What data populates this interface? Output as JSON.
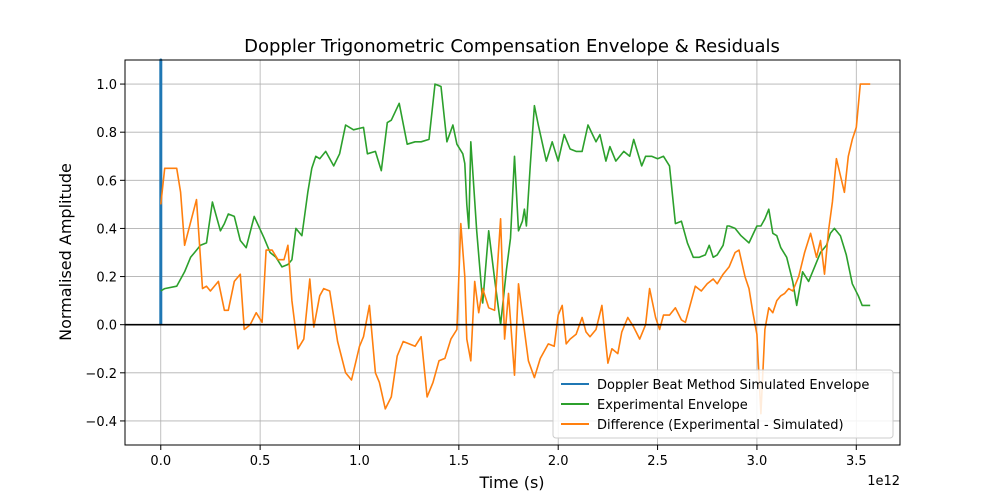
{
  "chart_data": {
    "type": "line",
    "title": "Doppler Trigonometric Compensation Envelope & Residuals",
    "xlabel": "Time (s)",
    "ylabel": "Normalised Amplitude",
    "x_offset_label": "1e12",
    "xlim": [
      -0.18,
      3.72
    ],
    "ylim": [
      -0.5,
      1.1
    ],
    "xticks": [
      0.0,
      0.5,
      1.0,
      1.5,
      2.0,
      2.5,
      3.0,
      3.5
    ],
    "xtick_labels": [
      "0.0",
      "0.5",
      "1.0",
      "1.5",
      "2.0",
      "2.5",
      "3.0",
      "3.5"
    ],
    "yticks": [
      -0.4,
      -0.2,
      0.0,
      0.2,
      0.4,
      0.6,
      0.8,
      1.0
    ],
    "ytick_labels": [
      "−0.4",
      "−0.2",
      "0.0",
      "0.2",
      "0.4",
      "0.6",
      "0.8",
      "1.0"
    ],
    "grid": true,
    "zero_line": true,
    "legend_position": "lower-right",
    "series": [
      {
        "name": "Doppler Beat Method Simulated Envelope",
        "color": "#1f77b4",
        "x": [
          0.0,
          0.0,
          0.0
        ],
        "y": [
          0.0,
          1.1,
          0.0
        ]
      },
      {
        "name": "Experimental Envelope",
        "color": "#2ca02c",
        "x": [
          0.0,
          0.02,
          0.08,
          0.12,
          0.15,
          0.17,
          0.2,
          0.23,
          0.26,
          0.3,
          0.32,
          0.34,
          0.37,
          0.4,
          0.43,
          0.47,
          0.52,
          0.55,
          0.58,
          0.61,
          0.64,
          0.66,
          0.68,
          0.71,
          0.74,
          0.76,
          0.78,
          0.8,
          0.83,
          0.87,
          0.9,
          0.93,
          0.97,
          1.02,
          1.04,
          1.08,
          1.11,
          1.14,
          1.16,
          1.2,
          1.24,
          1.28,
          1.31,
          1.35,
          1.38,
          1.41,
          1.44,
          1.47,
          1.49,
          1.52,
          1.53,
          1.54,
          1.55,
          1.56,
          1.59,
          1.62,
          1.65,
          1.68,
          1.71,
          1.74,
          1.76,
          1.78,
          1.8,
          1.82,
          1.83,
          1.84,
          1.86,
          1.88,
          1.9,
          1.94,
          1.97,
          2.0,
          2.03,
          2.06,
          2.09,
          2.12,
          2.15,
          2.19,
          2.21,
          2.24,
          2.26,
          2.29,
          2.33,
          2.36,
          2.38,
          2.42,
          2.44,
          2.47,
          2.5,
          2.53,
          2.56,
          2.59,
          2.62,
          2.65,
          2.68,
          2.71,
          2.74,
          2.76,
          2.78,
          2.8,
          2.83,
          2.85,
          2.86,
          2.89,
          2.92,
          2.96,
          3.0,
          3.02,
          3.04,
          3.06,
          3.08,
          3.1,
          3.12,
          3.15,
          3.18,
          3.2,
          3.23,
          3.26,
          3.29,
          3.32,
          3.35,
          3.37,
          3.39,
          3.42,
          3.45,
          3.48,
          3.51,
          3.53,
          3.55,
          3.57
        ],
        "y": [
          0.14,
          0.15,
          0.16,
          0.22,
          0.28,
          0.3,
          0.33,
          0.34,
          0.51,
          0.39,
          0.42,
          0.46,
          0.45,
          0.35,
          0.32,
          0.45,
          0.36,
          0.3,
          0.28,
          0.24,
          0.25,
          0.27,
          0.4,
          0.37,
          0.55,
          0.65,
          0.7,
          0.69,
          0.72,
          0.66,
          0.71,
          0.83,
          0.81,
          0.82,
          0.71,
          0.72,
          0.64,
          0.84,
          0.85,
          0.92,
          0.75,
          0.76,
          0.76,
          0.77,
          1.0,
          0.99,
          0.76,
          0.83,
          0.75,
          0.71,
          0.67,
          0.5,
          0.4,
          0.76,
          0.39,
          0.09,
          0.39,
          0.19,
          0.0,
          0.23,
          0.36,
          0.7,
          0.39,
          0.43,
          0.48,
          0.41,
          0.67,
          0.91,
          0.83,
          0.68,
          0.76,
          0.68,
          0.79,
          0.73,
          0.72,
          0.72,
          0.83,
          0.76,
          0.79,
          0.68,
          0.74,
          0.68,
          0.72,
          0.7,
          0.77,
          0.66,
          0.7,
          0.7,
          0.69,
          0.7,
          0.66,
          0.42,
          0.43,
          0.34,
          0.28,
          0.28,
          0.29,
          0.33,
          0.28,
          0.29,
          0.33,
          0.41,
          0.41,
          0.4,
          0.37,
          0.34,
          0.41,
          0.41,
          0.44,
          0.48,
          0.38,
          0.37,
          0.32,
          0.28,
          0.18,
          0.08,
          0.22,
          0.18,
          0.24,
          0.3,
          0.33,
          0.38,
          0.4,
          0.37,
          0.29,
          0.17,
          0.12,
          0.08,
          0.08,
          0.08
        ],
        "y_note": "approximate readings"
      },
      {
        "name": "Difference (Experimental - Simulated)",
        "color": "#ff7f0e",
        "x": [
          0.0,
          0.02,
          0.08,
          0.1,
          0.12,
          0.18,
          0.21,
          0.23,
          0.25,
          0.29,
          0.32,
          0.34,
          0.37,
          0.4,
          0.42,
          0.45,
          0.48,
          0.51,
          0.53,
          0.56,
          0.59,
          0.62,
          0.64,
          0.66,
          0.69,
          0.72,
          0.75,
          0.77,
          0.8,
          0.82,
          0.85,
          0.89,
          0.93,
          0.96,
          1.0,
          1.02,
          1.05,
          1.08,
          1.1,
          1.13,
          1.16,
          1.19,
          1.22,
          1.25,
          1.28,
          1.31,
          1.34,
          1.37,
          1.4,
          1.43,
          1.46,
          1.49,
          1.51,
          1.53,
          1.54,
          1.56,
          1.58,
          1.6,
          1.62,
          1.65,
          1.68,
          1.71,
          1.73,
          1.75,
          1.78,
          1.8,
          1.82,
          1.85,
          1.88,
          1.91,
          1.95,
          1.98,
          2.0,
          2.02,
          2.04,
          2.06,
          2.09,
          2.12,
          2.14,
          2.16,
          2.19,
          2.22,
          2.25,
          2.27,
          2.3,
          2.32,
          2.35,
          2.38,
          2.41,
          2.44,
          2.46,
          2.49,
          2.51,
          2.53,
          2.56,
          2.59,
          2.62,
          2.64,
          2.66,
          2.69,
          2.72,
          2.75,
          2.78,
          2.8,
          2.83,
          2.86,
          2.89,
          2.91,
          2.94,
          2.96,
          2.98,
          3.0,
          3.02,
          3.04,
          3.06,
          3.08,
          3.1,
          3.12,
          3.14,
          3.16,
          3.18,
          3.21,
          3.24,
          3.27,
          3.3,
          3.32,
          3.34,
          3.36,
          3.38,
          3.4,
          3.42,
          3.44,
          3.46,
          3.48,
          3.5,
          3.52,
          3.54,
          3.56,
          3.57
        ],
        "y": [
          0.5,
          0.65,
          0.65,
          0.55,
          0.33,
          0.52,
          0.15,
          0.16,
          0.14,
          0.18,
          0.06,
          0.06,
          0.18,
          0.21,
          -0.02,
          0.0,
          0.05,
          0.01,
          0.31,
          0.31,
          0.27,
          0.27,
          0.33,
          0.1,
          -0.1,
          -0.06,
          0.19,
          -0.01,
          0.12,
          0.15,
          0.14,
          -0.07,
          -0.2,
          -0.23,
          -0.09,
          -0.05,
          0.08,
          -0.2,
          -0.24,
          -0.35,
          -0.3,
          -0.13,
          -0.07,
          -0.08,
          -0.09,
          -0.05,
          -0.3,
          -0.24,
          -0.15,
          -0.14,
          -0.06,
          -0.02,
          0.42,
          0.2,
          -0.06,
          -0.15,
          0.18,
          0.05,
          0.15,
          0.07,
          0.06,
          0.44,
          -0.06,
          0.13,
          -0.21,
          0.17,
          0.04,
          -0.15,
          -0.22,
          -0.14,
          -0.08,
          -0.09,
          0.04,
          0.08,
          -0.08,
          -0.06,
          -0.04,
          0.03,
          -0.03,
          -0.05,
          -0.02,
          0.08,
          -0.16,
          -0.1,
          -0.12,
          -0.03,
          0.03,
          -0.01,
          -0.06,
          0.0,
          0.15,
          0.03,
          -0.02,
          0.04,
          0.04,
          0.07,
          0.02,
          0.01,
          0.07,
          0.16,
          0.14,
          0.17,
          0.19,
          0.17,
          0.21,
          0.24,
          0.3,
          0.31,
          0.2,
          0.15,
          0.05,
          -0.04,
          -0.37,
          -0.02,
          0.07,
          0.05,
          0.1,
          0.12,
          0.13,
          0.15,
          0.14,
          0.2,
          0.3,
          0.38,
          0.28,
          0.35,
          0.21,
          0.39,
          0.51,
          0.69,
          0.62,
          0.55,
          0.7,
          0.77,
          0.82,
          1.0,
          1.0,
          1.0,
          1.0
        ],
        "y_note": "approximate readings"
      }
    ]
  }
}
